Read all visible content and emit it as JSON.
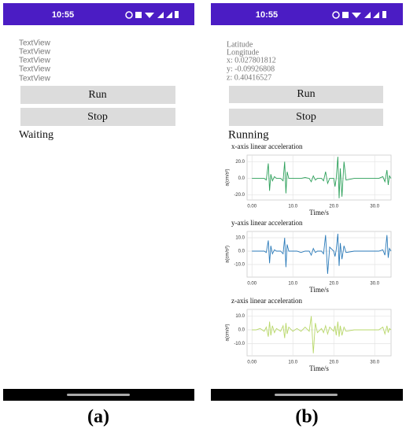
{
  "left_screen": {
    "status_time": "10:55",
    "text_views": [
      "TextView",
      "TextView",
      "TextView",
      "TextView",
      "TextView"
    ],
    "buttons": [
      "Run",
      "Stop"
    ],
    "status": "Waiting"
  },
  "right_screen": {
    "status_time": "10:55",
    "location_lines": [
      "Latitude",
      "Longitude",
      "x: 0.027801812",
      "y: -0.09926808",
      "z: 0.40416527"
    ],
    "buttons": [
      "Run",
      "Stop"
    ],
    "status": "Running"
  },
  "captions": [
    "(a)",
    "(b)"
  ],
  "chart_data": [
    {
      "type": "line",
      "title": "x-axis linear acceleration",
      "x_label": "Time/s",
      "y_label": "a(cm/s²)",
      "color": "#2ca05a",
      "grid": true,
      "x": [
        0,
        1,
        2,
        3,
        3.5,
        4,
        4.3,
        4.6,
        5,
        5.5,
        6,
        7,
        7.6,
        8,
        8.3,
        8.6,
        9,
        10,
        11,
        12,
        13,
        14,
        14.5,
        15,
        15.5,
        16,
        17,
        17.5,
        18,
        18.5,
        19,
        20,
        20.3,
        20.6,
        21,
        21.3,
        21.6,
        22,
        22.5,
        23,
        25,
        27,
        29,
        31,
        32,
        32.5,
        33,
        33.3,
        33.6,
        34
      ],
      "values": [
        0,
        0,
        0,
        0,
        -2,
        18,
        -15,
        5,
        -3,
        2,
        0,
        0,
        -3,
        20,
        -18,
        8,
        0,
        0,
        0,
        0,
        1,
        0,
        -4,
        3,
        -2,
        0,
        0,
        -3,
        8,
        -6,
        0,
        0,
        -10,
        0,
        26,
        -24,
        12,
        -22,
        20,
        -2,
        0,
        0,
        0,
        0,
        2,
        -4,
        10,
        -8,
        3,
        0
      ],
      "xlim": [
        -1.2,
        34
      ],
      "ylim": [
        -26,
        28
      ],
      "xticks": [
        {
          "value": 0,
          "label": "0.00"
        },
        {
          "value": 10,
          "label": "10.0"
        },
        {
          "value": 20,
          "label": "20.0"
        },
        {
          "value": 30,
          "label": "30.0"
        }
      ],
      "yticks": [
        {
          "value": 20,
          "label": "20.0"
        },
        {
          "value": 0,
          "label": "0.0"
        },
        {
          "value": -20,
          "label": "-20.0"
        }
      ]
    },
    {
      "type": "line",
      "title": "y-axis linear acceleration",
      "x_label": "Time/s",
      "y_label": "a(cm/s²)",
      "color": "#2a7ab9",
      "grid": true,
      "x": [
        0,
        1,
        2,
        3,
        3.5,
        4,
        4.3,
        4.6,
        5,
        5.5,
        6,
        7,
        7.6,
        8,
        8.3,
        8.6,
        9,
        10,
        11,
        12,
        13,
        14,
        14.5,
        15,
        15.5,
        16,
        17,
        17.5,
        18,
        18.5,
        19,
        20,
        20.3,
        20.6,
        21,
        21.3,
        21.6,
        22,
        22.5,
        23,
        25,
        27,
        29,
        31,
        32,
        32.5,
        33,
        33.3,
        33.6,
        34
      ],
      "values": [
        0,
        0,
        0,
        0,
        -1,
        8,
        -9,
        4,
        -2,
        1,
        0,
        0,
        -2,
        10,
        -12,
        5,
        0,
        0,
        0,
        -1,
        0,
        0,
        -3,
        2,
        -1,
        0,
        0,
        -2,
        12,
        -17,
        3,
        0,
        -4,
        1,
        13,
        -11,
        6,
        -6,
        4,
        -1,
        0,
        0,
        0,
        0,
        1,
        -3,
        12,
        -5,
        2,
        0
      ],
      "xlim": [
        -1.2,
        34
      ],
      "ylim": [
        -19.4,
        14.7
      ],
      "xticks": [
        {
          "value": 0,
          "label": "0.00"
        },
        {
          "value": 10,
          "label": "10.0"
        },
        {
          "value": 20,
          "label": "20.0"
        },
        {
          "value": 30,
          "label": "30.0"
        }
      ],
      "yticks": [
        {
          "value": 10,
          "label": "10.0"
        },
        {
          "value": 0,
          "label": "0.0"
        },
        {
          "value": -10,
          "label": "-10.0"
        }
      ]
    },
    {
      "type": "line",
      "title": "z-axis linear acceleration",
      "x_label": "Time/s",
      "y_label": "a(cm/s²)",
      "color": "#b9d86a",
      "grid": true,
      "x": [
        0,
        1,
        2,
        3,
        3.5,
        4,
        4.3,
        4.6,
        5,
        5.5,
        6,
        7,
        7.6,
        8,
        8.3,
        8.6,
        9,
        10,
        11,
        12,
        13,
        14,
        14.5,
        15,
        15.5,
        16,
        17,
        17.5,
        18,
        18.5,
        19,
        20,
        20.3,
        20.6,
        21,
        21.3,
        21.6,
        22,
        22.5,
        23,
        25,
        27,
        29,
        31,
        32,
        32.5,
        33,
        33.3,
        33.6,
        34
      ],
      "values": [
        0,
        0,
        1,
        -1,
        2,
        -5,
        6,
        -4,
        3,
        -2,
        1,
        -1,
        3,
        -6,
        5,
        -3,
        2,
        -1,
        1,
        -1,
        2,
        -1,
        10,
        -17,
        5,
        -2,
        1,
        -2,
        3,
        -3,
        2,
        -1,
        3,
        -4,
        6,
        -5,
        3,
        -4,
        2,
        -1,
        0,
        0,
        0,
        0,
        2,
        -3,
        3,
        -2,
        1,
        0
      ],
      "xlim": [
        -1.2,
        34
      ],
      "ylim": [
        -18.9,
        14.9
      ],
      "xticks": [
        {
          "value": 0,
          "label": "0.00"
        },
        {
          "value": 10,
          "label": "10.0"
        },
        {
          "value": 20,
          "label": "20.0"
        },
        {
          "value": 30,
          "label": "30.0"
        }
      ],
      "yticks": [
        {
          "value": 10,
          "label": "10.0"
        },
        {
          "value": 0,
          "label": "0.0"
        },
        {
          "value": -10,
          "label": "-10.0"
        }
      ]
    }
  ]
}
